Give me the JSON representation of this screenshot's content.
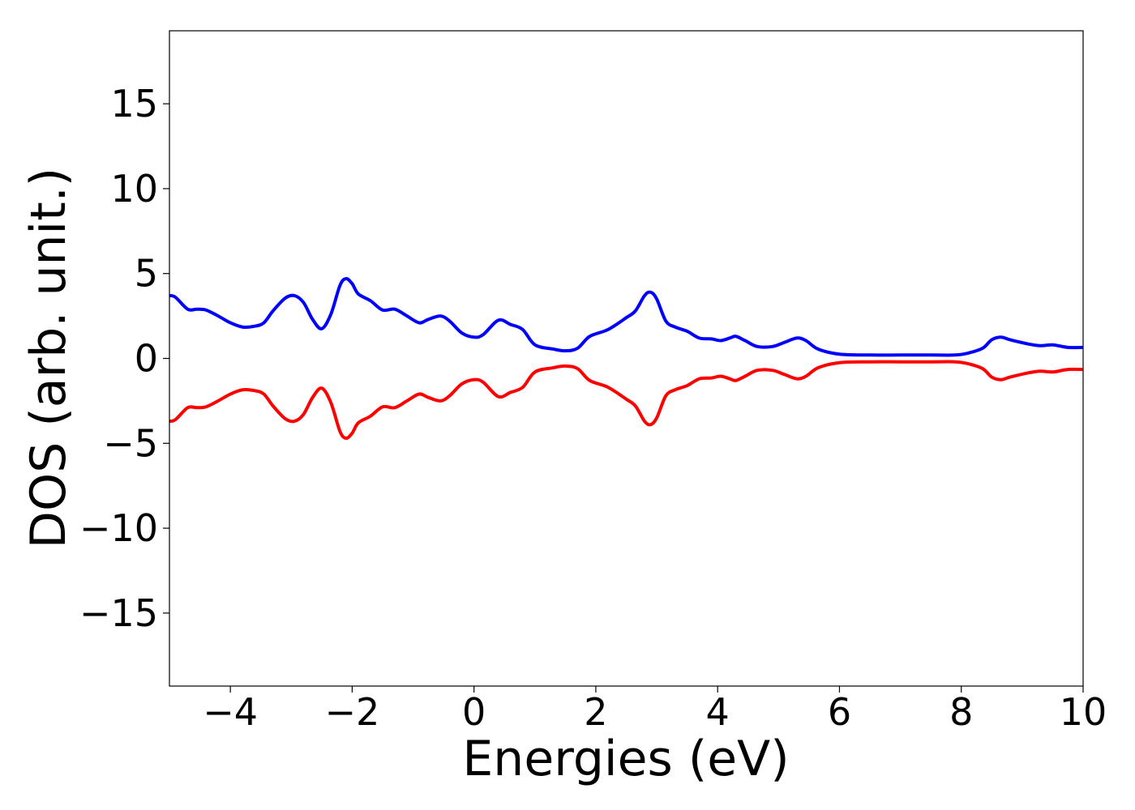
{
  "chart_data": {
    "type": "line",
    "title": "",
    "xlabel": "Energies (eV)",
    "ylabel": "DOS (arb. unit.)",
    "xlim": [
      -5,
      10
    ],
    "ylim": [
      -19.3,
      19.3
    ],
    "xticks": [
      -4,
      -2,
      0,
      2,
      4,
      6,
      8,
      10
    ],
    "yticks": [
      -15,
      -10,
      -5,
      0,
      5,
      10,
      15
    ],
    "xtick_labels": [
      "−4",
      "−2",
      "0",
      "2",
      "4",
      "6",
      "8",
      "10"
    ],
    "ytick_labels": [
      "−15",
      "−10",
      "−5",
      "0",
      "5",
      "10",
      "15"
    ],
    "grid": false,
    "legend": "none",
    "series": [
      {
        "color": "#0000ff",
        "points": [
          [
            -5.0,
            3.7
          ],
          [
            -4.9,
            3.6
          ],
          [
            -4.7,
            2.9
          ],
          [
            -4.55,
            2.9
          ],
          [
            -4.4,
            2.85
          ],
          [
            -4.2,
            2.5
          ],
          [
            -4.0,
            2.1
          ],
          [
            -3.8,
            1.85
          ],
          [
            -3.6,
            1.9
          ],
          [
            -3.45,
            2.1
          ],
          [
            -3.3,
            2.8
          ],
          [
            -3.1,
            3.55
          ],
          [
            -2.95,
            3.7
          ],
          [
            -2.8,
            3.3
          ],
          [
            -2.65,
            2.3
          ],
          [
            -2.5,
            1.75
          ],
          [
            -2.35,
            2.6
          ],
          [
            -2.2,
            4.3
          ],
          [
            -2.1,
            4.7
          ],
          [
            -2.0,
            4.4
          ],
          [
            -1.9,
            3.8
          ],
          [
            -1.7,
            3.4
          ],
          [
            -1.5,
            2.85
          ],
          [
            -1.3,
            2.9
          ],
          [
            -1.1,
            2.5
          ],
          [
            -0.9,
            2.1
          ],
          [
            -0.75,
            2.3
          ],
          [
            -0.55,
            2.5
          ],
          [
            -0.4,
            2.2
          ],
          [
            -0.2,
            1.5
          ],
          [
            0.0,
            1.25
          ],
          [
            0.15,
            1.4
          ],
          [
            0.4,
            2.25
          ],
          [
            0.6,
            2.0
          ],
          [
            0.8,
            1.7
          ],
          [
            1.0,
            0.8
          ],
          [
            1.3,
            0.55
          ],
          [
            1.5,
            0.45
          ],
          [
            1.7,
            0.6
          ],
          [
            1.9,
            1.3
          ],
          [
            2.2,
            1.7
          ],
          [
            2.5,
            2.4
          ],
          [
            2.65,
            2.8
          ],
          [
            2.8,
            3.7
          ],
          [
            2.9,
            3.9
          ],
          [
            3.0,
            3.5
          ],
          [
            3.15,
            2.2
          ],
          [
            3.3,
            1.85
          ],
          [
            3.5,
            1.6
          ],
          [
            3.7,
            1.2
          ],
          [
            3.9,
            1.15
          ],
          [
            4.05,
            1.05
          ],
          [
            4.2,
            1.2
          ],
          [
            4.3,
            1.3
          ],
          [
            4.45,
            1.05
          ],
          [
            4.65,
            0.7
          ],
          [
            4.9,
            0.7
          ],
          [
            5.1,
            0.95
          ],
          [
            5.3,
            1.2
          ],
          [
            5.45,
            1.05
          ],
          [
            5.65,
            0.55
          ],
          [
            6.0,
            0.25
          ],
          [
            6.5,
            0.2
          ],
          [
            7.0,
            0.2
          ],
          [
            7.5,
            0.2
          ],
          [
            7.9,
            0.2
          ],
          [
            8.1,
            0.3
          ],
          [
            8.35,
            0.6
          ],
          [
            8.5,
            1.1
          ],
          [
            8.65,
            1.25
          ],
          [
            8.8,
            1.1
          ],
          [
            9.1,
            0.85
          ],
          [
            9.3,
            0.75
          ],
          [
            9.5,
            0.8
          ],
          [
            9.75,
            0.65
          ],
          [
            10.0,
            0.65
          ]
        ]
      },
      {
        "color": "#ff0000",
        "points": [
          [
            -5.0,
            -3.7
          ],
          [
            -4.9,
            -3.6
          ],
          [
            -4.7,
            -2.9
          ],
          [
            -4.55,
            -2.9
          ],
          [
            -4.4,
            -2.85
          ],
          [
            -4.2,
            -2.5
          ],
          [
            -4.0,
            -2.1
          ],
          [
            -3.8,
            -1.85
          ],
          [
            -3.6,
            -1.9
          ],
          [
            -3.45,
            -2.1
          ],
          [
            -3.3,
            -2.8
          ],
          [
            -3.1,
            -3.55
          ],
          [
            -2.95,
            -3.7
          ],
          [
            -2.8,
            -3.3
          ],
          [
            -2.65,
            -2.3
          ],
          [
            -2.5,
            -1.75
          ],
          [
            -2.35,
            -2.6
          ],
          [
            -2.2,
            -4.3
          ],
          [
            -2.1,
            -4.7
          ],
          [
            -2.0,
            -4.4
          ],
          [
            -1.9,
            -3.8
          ],
          [
            -1.7,
            -3.4
          ],
          [
            -1.5,
            -2.85
          ],
          [
            -1.3,
            -2.9
          ],
          [
            -1.1,
            -2.5
          ],
          [
            -0.9,
            -2.1
          ],
          [
            -0.75,
            -2.3
          ],
          [
            -0.55,
            -2.5
          ],
          [
            -0.4,
            -2.2
          ],
          [
            -0.2,
            -1.5
          ],
          [
            0.0,
            -1.25
          ],
          [
            0.15,
            -1.4
          ],
          [
            0.4,
            -2.25
          ],
          [
            0.6,
            -2.0
          ],
          [
            0.8,
            -1.7
          ],
          [
            1.0,
            -0.8
          ],
          [
            1.3,
            -0.55
          ],
          [
            1.5,
            -0.45
          ],
          [
            1.7,
            -0.6
          ],
          [
            1.9,
            -1.3
          ],
          [
            2.2,
            -1.7
          ],
          [
            2.5,
            -2.4
          ],
          [
            2.65,
            -2.8
          ],
          [
            2.8,
            -3.7
          ],
          [
            2.9,
            -3.9
          ],
          [
            3.0,
            -3.5
          ],
          [
            3.15,
            -2.2
          ],
          [
            3.3,
            -1.85
          ],
          [
            3.5,
            -1.6
          ],
          [
            3.7,
            -1.2
          ],
          [
            3.9,
            -1.15
          ],
          [
            4.05,
            -1.05
          ],
          [
            4.2,
            -1.2
          ],
          [
            4.3,
            -1.3
          ],
          [
            4.45,
            -1.05
          ],
          [
            4.65,
            -0.7
          ],
          [
            4.9,
            -0.7
          ],
          [
            5.1,
            -0.95
          ],
          [
            5.3,
            -1.2
          ],
          [
            5.45,
            -1.05
          ],
          [
            5.65,
            -0.55
          ],
          [
            6.0,
            -0.25
          ],
          [
            6.5,
            -0.2
          ],
          [
            7.0,
            -0.2
          ],
          [
            7.5,
            -0.2
          ],
          [
            7.9,
            -0.2
          ],
          [
            8.1,
            -0.3
          ],
          [
            8.35,
            -0.6
          ],
          [
            8.5,
            -1.1
          ],
          [
            8.65,
            -1.25
          ],
          [
            8.8,
            -1.1
          ],
          [
            9.1,
            -0.85
          ],
          [
            9.3,
            -0.75
          ],
          [
            9.5,
            -0.8
          ],
          [
            9.75,
            -0.65
          ],
          [
            10.0,
            -0.65
          ]
        ]
      }
    ]
  }
}
